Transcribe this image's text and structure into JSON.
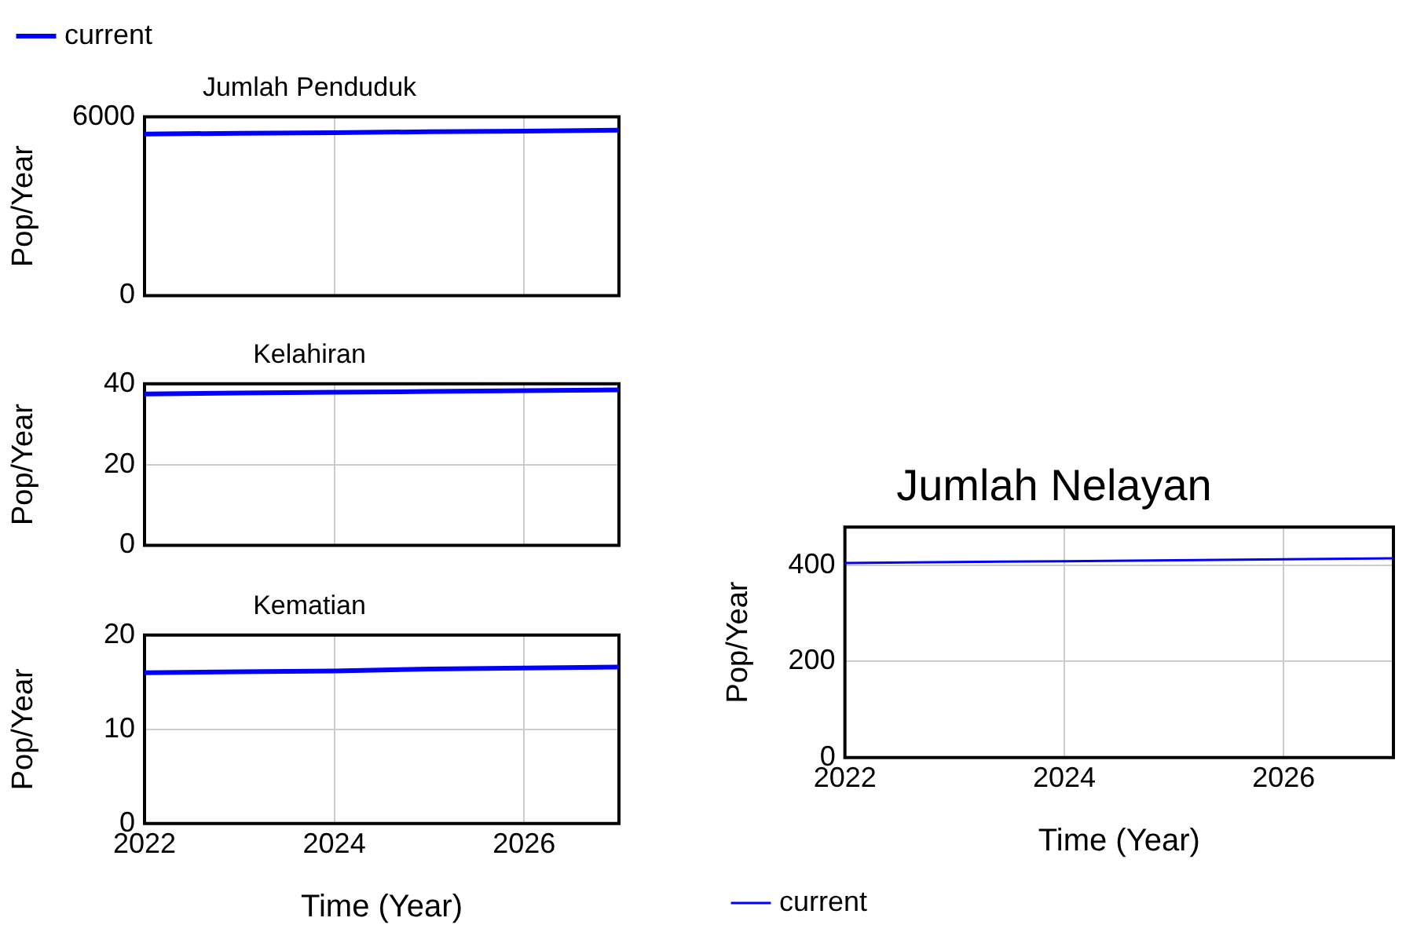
{
  "chart_data": [
    {
      "type": "line",
      "title": "Jumlah Penduduk",
      "ylabel": "Pop/Year",
      "x": [
        2022,
        2023,
        2024,
        2025,
        2026,
        2027
      ],
      "xlim": [
        2022,
        2027
      ],
      "xticks": [
        2022,
        2024,
        2026
      ],
      "ylim": [
        0,
        6000
      ],
      "yticks": [
        0,
        6000
      ],
      "tick_labels": "y",
      "grid": true,
      "legend": "top left",
      "series": [
        {
          "name": "current",
          "color": "#0000ff",
          "values": [
            5420,
            5450,
            5470,
            5500,
            5520,
            5550
          ]
        }
      ]
    },
    {
      "type": "line",
      "title": "Kelahiran",
      "ylabel": "Pop/Year",
      "x": [
        2022,
        2023,
        2024,
        2025,
        2026,
        2027
      ],
      "xlim": [
        2022,
        2027
      ],
      "xticks": [
        2022,
        2024,
        2026
      ],
      "ylim": [
        0,
        40
      ],
      "yticks": [
        0,
        20,
        40
      ],
      "tick_labels": "y",
      "grid": true,
      "series": [
        {
          "color": "#0000ff",
          "values": [
            37.5,
            37.7,
            37.9,
            38.1,
            38.3,
            38.5
          ]
        }
      ]
    },
    {
      "type": "line",
      "title": "Kematian",
      "ylabel": "Pop/Year",
      "xlabel": "Time (Year)",
      "x": [
        2022,
        2023,
        2024,
        2025,
        2026,
        2027
      ],
      "xlim": [
        2022,
        2027
      ],
      "xticks": [
        2022,
        2024,
        2026
      ],
      "ylim": [
        0,
        20
      ],
      "yticks": [
        0,
        10,
        20
      ],
      "grid": true,
      "series": [
        {
          "color": "#0000ff",
          "values": [
            16,
            16.1,
            16.2,
            16.4,
            16.5,
            16.6
          ]
        }
      ]
    },
    {
      "type": "line",
      "title": "Jumlah Nelayan",
      "ylabel": "Pop/Year",
      "xlabel": "Time (Year)",
      "x": [
        2022,
        2023,
        2024,
        2025,
        2026,
        2027
      ],
      "xlim": [
        2022,
        2027
      ],
      "xticks": [
        2022,
        2024,
        2026
      ],
      "ylim": [
        0,
        480
      ],
      "yticks": [
        0,
        200,
        400
      ],
      "grid": true,
      "legend": "bottom left",
      "series": [
        {
          "name": "current",
          "color": "#0000ff",
          "values": [
            405,
            407,
            409,
            411,
            413,
            415
          ]
        }
      ]
    }
  ]
}
